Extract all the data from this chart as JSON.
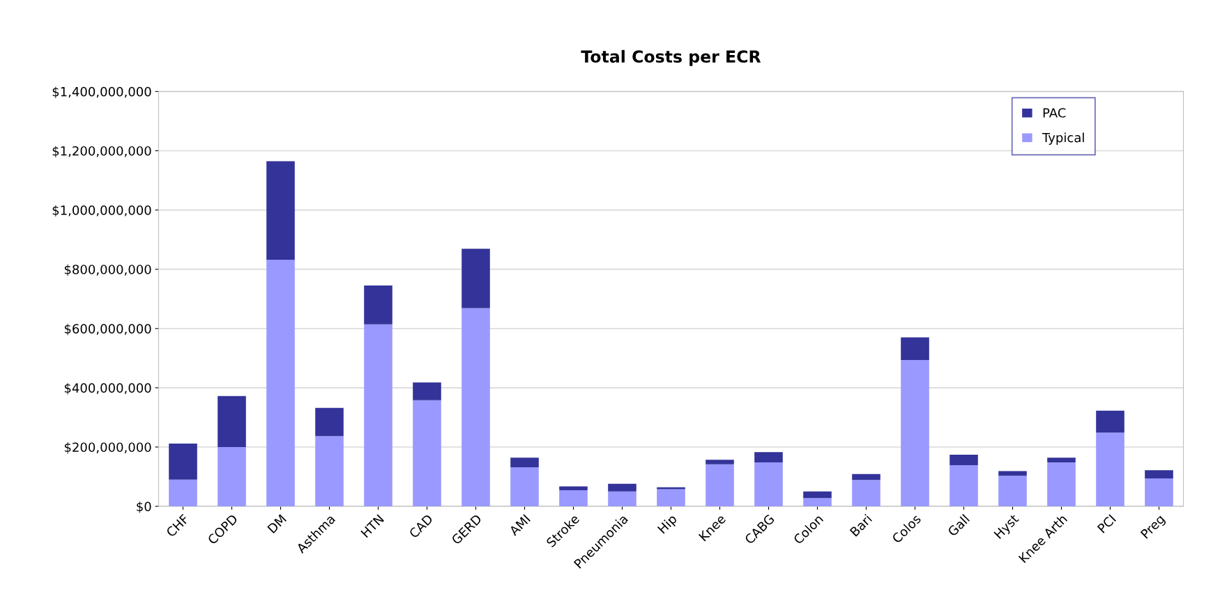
{
  "chart_data": {
    "type": "bar",
    "title": "Total Costs per ECR",
    "stacked": true,
    "categories": [
      "CHF",
      "COPD",
      "DM",
      "Asthma",
      "HTN",
      "CAD",
      "GERD",
      "AMI",
      "Stroke",
      "Pneumonia",
      "Hip",
      "Knee",
      "CABG",
      "Colon",
      "Bari",
      "Colos",
      "Gall",
      "Hyst",
      "Knee Arth",
      "PCI",
      "Preg"
    ],
    "series": [
      {
        "name": "Typical",
        "color": "#9999ff",
        "values": [
          90000000,
          200000000,
          832000000,
          237000000,
          614000000,
          358000000,
          669000000,
          132000000,
          54000000,
          50000000,
          58000000,
          142000000,
          148000000,
          28000000,
          89000000,
          494000000,
          139000000,
          103000000,
          148000000,
          249000000,
          94000000
        ]
      },
      {
        "name": "PAC",
        "color": "#333399",
        "values": [
          122000000,
          172000000,
          333000000,
          95000000,
          131000000,
          60000000,
          200000000,
          32000000,
          13000000,
          26000000,
          6000000,
          15000000,
          35000000,
          22000000,
          20000000,
          76000000,
          35000000,
          16000000,
          16000000,
          74000000,
          28000000
        ]
      }
    ],
    "ylim": [
      0,
      1400000000
    ],
    "yticks": [
      {
        "value": 0,
        "label": "$0"
      },
      {
        "value": 200000000,
        "label": "$200,000,000"
      },
      {
        "value": 400000000,
        "label": "$400,000,000"
      },
      {
        "value": 600000000,
        "label": "$600,000,000"
      },
      {
        "value": 800000000,
        "label": "$800,000,000"
      },
      {
        "value": 1000000000,
        "label": "$1,000,000,000"
      },
      {
        "value": 1200000000,
        "label": "$1,200,000,000"
      },
      {
        "value": 1400000000,
        "label": "$1,400,000,000"
      }
    ],
    "grid": "y",
    "legend": "top right"
  }
}
